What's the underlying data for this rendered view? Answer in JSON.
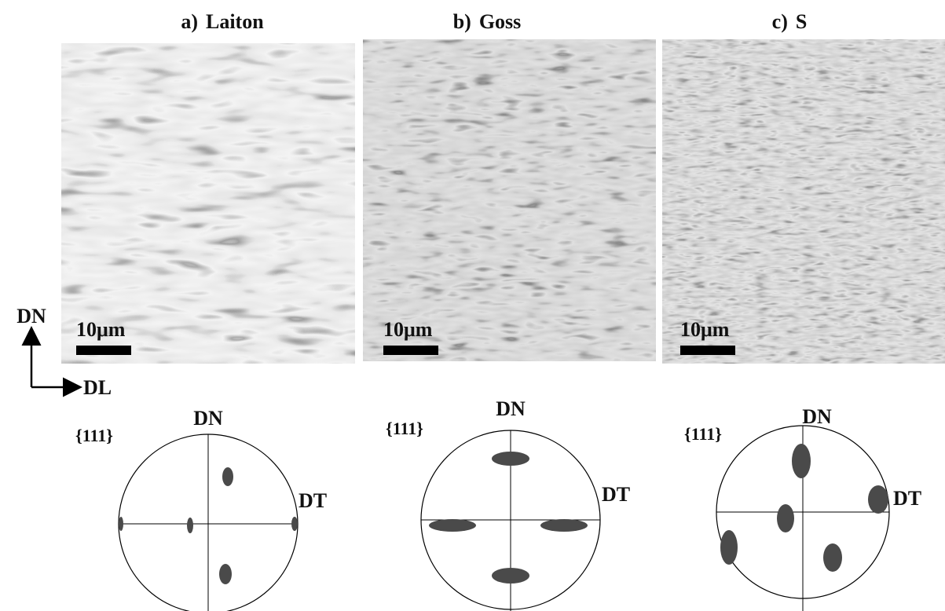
{
  "panels": [
    {
      "label": "a)",
      "name": "Laiton",
      "scale_bar": "10μm",
      "pole_figure": {
        "plane": "{111}",
        "top": "DN",
        "right": "DT"
      }
    },
    {
      "label": "b)",
      "name": "Goss",
      "scale_bar": "10μm",
      "pole_figure": {
        "plane": "{111}",
        "top": "DN",
        "right": "DT"
      }
    },
    {
      "label": "c)",
      "name": "S",
      "scale_bar": "10μm",
      "pole_figure": {
        "plane": "{111}",
        "top": "DN",
        "right": "DT"
      }
    }
  ],
  "axes": {
    "vertical": "DN",
    "horizontal": "DL"
  }
}
